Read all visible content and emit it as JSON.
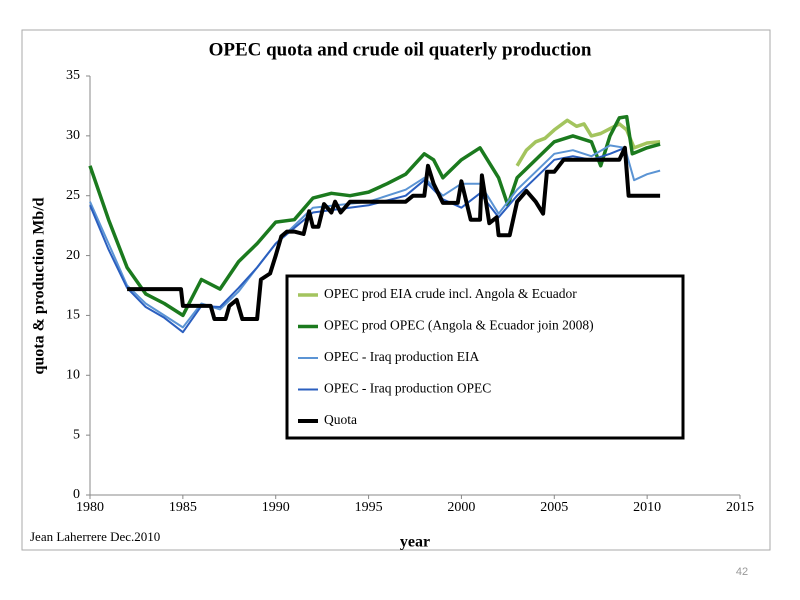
{
  "chart_data": {
    "type": "line",
    "title": "OPEC quota and crude oil quaterly production",
    "x_label": "year",
    "y_label": "quota & production Mb/d",
    "annotation": "Jean Laherrere Dec.2010",
    "xlim": [
      1980,
      2015
    ],
    "xticks": [
      1980,
      1985,
      1990,
      1995,
      2000,
      2005,
      2010,
      2015
    ],
    "ylim": [
      0,
      35
    ],
    "yticks": [
      0,
      5,
      10,
      15,
      20,
      25,
      30,
      35
    ],
    "grid": false,
    "legend": "center",
    "series": [
      {
        "name": "OPEC prod EIA crude incl. Angola & Ecuador",
        "color": "#a3c45e",
        "x": [
          2003,
          2003.5,
          2004,
          2004.5,
          2005,
          2005.7,
          2006.2,
          2006.6,
          2007,
          2007.5,
          2008,
          2008.5,
          2008.9,
          2009.3,
          2010,
          2010.7
        ],
        "values": [
          27.5,
          28.8,
          29.5,
          29.8,
          30.5,
          31.3,
          30.8,
          31,
          30,
          30.2,
          30.6,
          31,
          30.5,
          29,
          29.4,
          29.5
        ]
      },
      {
        "name": "OPEC prod OPEC (Angola & Ecuador join 2008)",
        "color": "#1b7a1e",
        "x": [
          1980,
          1981,
          1982,
          1983,
          1984,
          1985,
          1986,
          1987,
          1988,
          1989,
          1990,
          1991,
          1992,
          1993,
          1994,
          1995,
          1996,
          1997,
          1998,
          1998.5,
          1999,
          2000,
          2001,
          2002,
          2002.5,
          2003,
          2004,
          2005,
          2006,
          2007,
          2007.5,
          2008,
          2008.5,
          2008.9,
          2009.2,
          2010,
          2010.7
        ],
        "values": [
          27.5,
          23,
          19,
          16.8,
          16,
          15,
          18,
          17.2,
          19.5,
          21,
          22.8,
          23,
          24.8,
          25.2,
          25,
          25.3,
          26,
          26.8,
          28.5,
          28,
          26.5,
          28,
          29,
          26.5,
          24.2,
          26.5,
          28,
          29.5,
          30,
          29.5,
          27.5,
          30,
          31.5,
          31.6,
          28.5,
          29,
          29.3
        ]
      },
      {
        "name": "OPEC - Iraq production  EIA",
        "color": "#5b94d4",
        "x": [
          1980,
          1981,
          1982,
          1983,
          1984,
          1985,
          1986,
          1987,
          1988,
          1989,
          1990,
          1991,
          1992,
          1995,
          1997,
          1998,
          1999,
          2000,
          2001,
          2002,
          2003,
          2004,
          2005,
          2006,
          2007,
          2008,
          2008.8,
          2009.3,
          2010,
          2010.7
        ],
        "values": [
          24.5,
          21,
          17.5,
          16,
          15,
          14,
          16,
          15.5,
          17,
          19,
          21,
          22.5,
          24,
          24.5,
          25.5,
          26.5,
          25,
          26,
          26,
          23.5,
          25.5,
          27,
          28.5,
          28.8,
          28.3,
          29.2,
          29,
          26.3,
          26.8,
          27.1
        ]
      },
      {
        "name": "OPEC - Iraq production OPEC",
        "color": "#2b5fbf",
        "x": [
          1980,
          1981,
          1982,
          1983,
          1984,
          1985,
          1986,
          1987,
          1988,
          1989,
          1990,
          1991,
          1992,
          1995,
          1997,
          1998,
          1999,
          2000,
          2001,
          2002,
          2003,
          2004,
          2005,
          2006,
          2007,
          2008,
          2008.8
        ],
        "values": [
          24.2,
          20.5,
          17.3,
          15.7,
          14.8,
          13.6,
          15.8,
          15.7,
          17.3,
          19,
          21,
          22.3,
          23.6,
          24.2,
          25,
          26.3,
          24.7,
          24,
          25.2,
          23.2,
          25,
          26.5,
          28,
          28.3,
          28,
          28.5,
          29
        ]
      },
      {
        "name": "Quota",
        "color": "#000000",
        "x": [
          1982,
          1984.9,
          1985,
          1986.5,
          1986.7,
          1987.3,
          1987.5,
          1987.9,
          1988.2,
          1989,
          1989.2,
          1989.7,
          1990,
          1990.3,
          1990.6,
          1991,
          1991.5,
          1991.8,
          1992,
          1992.3,
          1992.6,
          1993,
          1993.2,
          1993.5,
          1994,
          1997,
          1997.4,
          1998,
          1998.2,
          1998.5,
          1999,
          1999.8,
          2000,
          2000.5,
          2001,
          2001.1,
          2001.5,
          2001.9,
          2002,
          2002.6,
          2003,
          2003.5,
          2004,
          2004.4,
          2004.6,
          2005,
          2005.5,
          2008.5,
          2008.8,
          2009,
          2010.7
        ],
        "values": [
          17.2,
          17.2,
          15.8,
          15.8,
          14.7,
          14.7,
          15.8,
          16.3,
          14.7,
          14.7,
          18,
          18.5,
          20,
          21.6,
          22,
          22,
          21.8,
          23.7,
          22.4,
          22.4,
          24.3,
          23.6,
          24.5,
          23.6,
          24.5,
          24.5,
          25,
          25,
          27.5,
          26,
          24.4,
          24.4,
          26.2,
          23,
          23,
          26.7,
          22.7,
          23.2,
          21.7,
          21.7,
          24.5,
          25.4,
          24.5,
          23.5,
          27,
          27,
          28,
          28,
          29,
          25,
          25
        ]
      }
    ]
  },
  "page_number": "42"
}
